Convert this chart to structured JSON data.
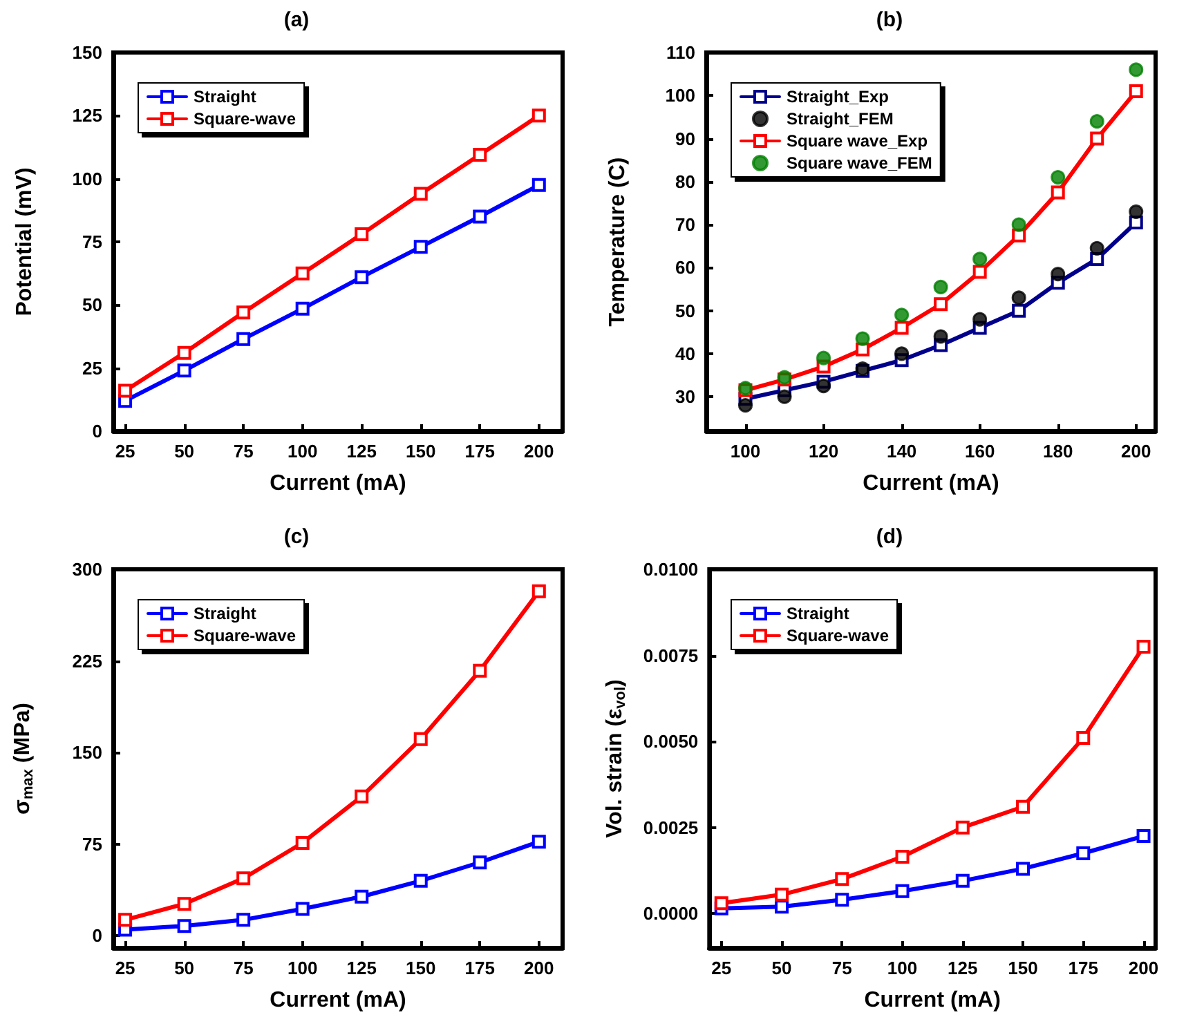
{
  "chart_data": [
    {
      "type": "line",
      "title": "(a)",
      "xlabel": "Current (mA)",
      "ylabel": "Potential (mV)",
      "x": [
        25,
        50,
        75,
        100,
        125,
        150,
        175,
        200
      ],
      "xlim": [
        20,
        210
      ],
      "xticks": [
        25,
        50,
        75,
        100,
        125,
        150,
        175,
        200
      ],
      "ylim": [
        0,
        150
      ],
      "yticks": [
        0,
        25,
        50,
        75,
        100,
        125,
        150
      ],
      "marker": "square",
      "line_style": "solid",
      "legend": "top left",
      "grid": false,
      "series": [
        {
          "name": "Straight",
          "color": "#0000ff",
          "values": [
            12,
            24,
            36.5,
            48.5,
            61,
            73,
            85,
            97.5
          ]
        },
        {
          "name": "Square-wave",
          "color": "#ff0000",
          "values": [
            16,
            31,
            47,
            62.5,
            78,
            94,
            109.5,
            125
          ]
        }
      ]
    },
    {
      "type": "line",
      "title": "(b)",
      "xlabel": "Current (mA)",
      "ylabel": "Temperature (C)",
      "x": [
        100,
        110,
        120,
        130,
        140,
        150,
        160,
        170,
        180,
        190,
        200
      ],
      "xlim": [
        90,
        205
      ],
      "xticks": [
        100,
        120,
        140,
        160,
        180,
        200
      ],
      "ylim": [
        22,
        110
      ],
      "yticks": [
        30,
        40,
        50,
        60,
        70,
        80,
        90,
        100,
        110
      ],
      "marker": "square",
      "line_style": "solid",
      "legend": "top left",
      "grid": false,
      "series": [
        {
          "name": "Straight_Exp",
          "color": "#00008b",
          "values": [
            29.5,
            31.5,
            33.5,
            36,
            38.5,
            42,
            46,
            50,
            56.5,
            62,
            70.5
          ]
        },
        {
          "name": "Straight_FEM",
          "color": "#000000",
          "type": "scatter",
          "marker": "circle",
          "values": [
            28,
            30,
            32.5,
            36.5,
            40,
            44,
            48,
            53,
            58.5,
            64.5,
            73
          ]
        },
        {
          "name": "Square wave_Exp",
          "color": "#ff0000",
          "values": [
            31.5,
            34,
            37,
            41,
            46,
            51.5,
            59,
            67.5,
            77.5,
            90,
            101
          ]
        },
        {
          "name": "Square wave_FEM",
          "color": "#008000",
          "type": "scatter",
          "marker": "circle",
          "values": [
            32,
            34.5,
            39,
            43.5,
            49,
            55.5,
            62,
            70,
            81,
            94,
            106
          ]
        }
      ]
    },
    {
      "type": "line",
      "title": "(c)",
      "xlabel": "Current (mA)",
      "ylabel": "σ$_{max}$ (MPa)",
      "x": [
        25,
        50,
        75,
        100,
        125,
        150,
        175,
        200
      ],
      "xlim": [
        20,
        210
      ],
      "xticks": [
        25,
        50,
        75,
        100,
        125,
        150,
        175,
        200
      ],
      "ylim": [
        -10,
        300
      ],
      "yticks": [
        0,
        75,
        150,
        225,
        300
      ],
      "marker": "square",
      "line_style": "solid",
      "legend": "top left",
      "grid": false,
      "series": [
        {
          "name": "Straight",
          "color": "#0000ff",
          "values": [
            5,
            8,
            13,
            22,
            32,
            45,
            60,
            77
          ]
        },
        {
          "name": "Square-wave",
          "color": "#ff0000",
          "values": [
            13,
            26,
            47,
            76,
            114,
            161,
            217,
            282
          ]
        }
      ]
    },
    {
      "type": "line",
      "title": "(d)",
      "xlabel": "Current (mA)",
      "ylabel": "Vol. strain (ε$_{vol}$)",
      "x": [
        25,
        50,
        75,
        100,
        125,
        150,
        175,
        200
      ],
      "xlim": [
        20,
        205
      ],
      "xticks": [
        25,
        50,
        75,
        100,
        125,
        150,
        175,
        200
      ],
      "ylim": [
        -0.001,
        0.01
      ],
      "yticks": [
        {
          "value": 0,
          "label": "0.0000"
        },
        {
          "value": 0.0025,
          "label": "0.0025"
        },
        {
          "value": 0.005,
          "label": "0.0050"
        },
        {
          "value": 0.0075,
          "label": "0.0075"
        },
        {
          "value": 0.01,
          "label": "0.0100"
        }
      ],
      "marker": "square",
      "line_style": "solid",
      "legend": "top left",
      "grid": false,
      "series": [
        {
          "name": "Straight",
          "color": "#0000ff",
          "values": [
            0.00015,
            0.0002,
            0.0004,
            0.00065,
            0.00095,
            0.0013,
            0.00175,
            0.00225
          ]
        },
        {
          "name": "Square-wave",
          "color": "#ff0000",
          "values": [
            0.0003,
            0.00055,
            0.001,
            0.00165,
            0.0025,
            0.0031,
            0.0051,
            0.00775
          ]
        }
      ]
    }
  ]
}
